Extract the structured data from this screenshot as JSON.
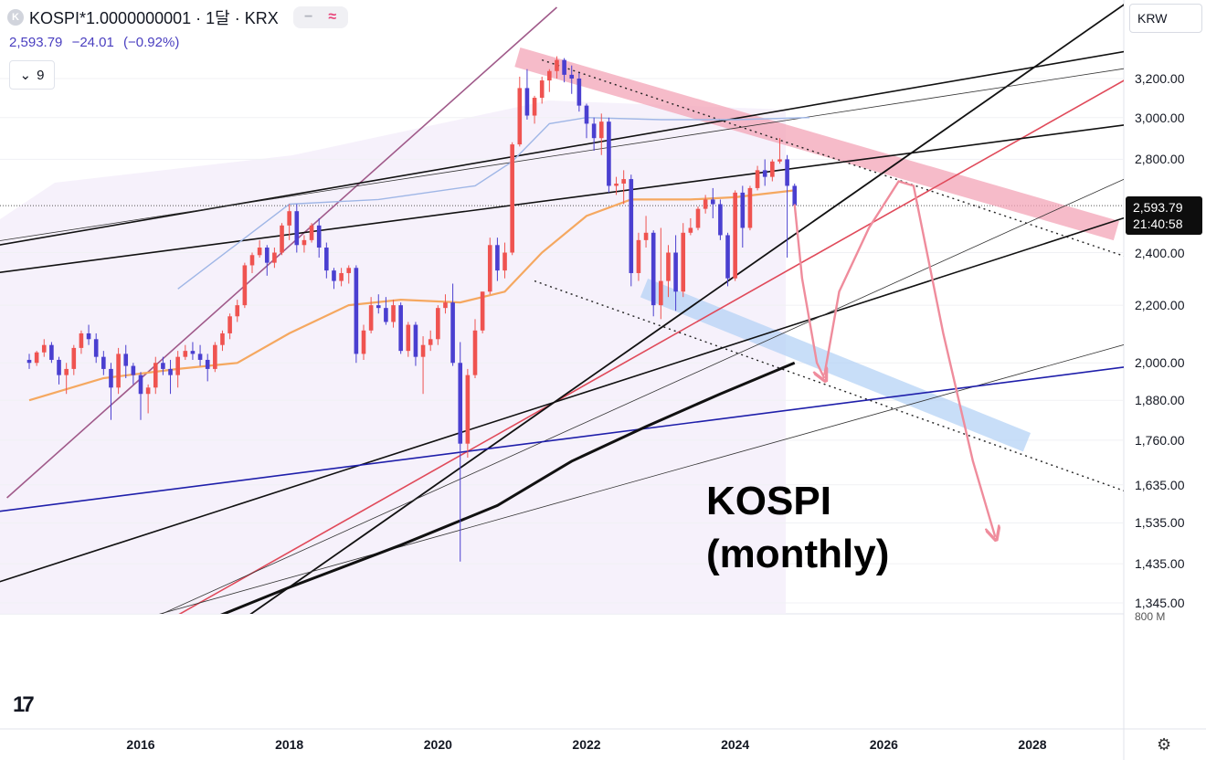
{
  "header": {
    "logo_letter": "K",
    "symbol_title": "KOSPI*1.0000000001 · 1달 · KRX",
    "pill_minus": "−",
    "pill_approx": "≈",
    "last_price": "2,593.79",
    "change": "−24.01",
    "change_pct": "(−0.92%)",
    "indicator_chevron": "⌄",
    "indicator_count": "9"
  },
  "currency": "KRW",
  "price_tag": {
    "price": "2,593.79",
    "countdown": "21:40:58"
  },
  "volume_axis_label": "800 M",
  "annotation": {
    "line1": "KOSPI",
    "line2": "(monthly)"
  },
  "colors": {
    "up": "#ef5350",
    "down": "#4a3fd0",
    "ma_short": "#f5a860",
    "ma_long": "#9fb6e6",
    "red_band": "#f4a5b8",
    "blue_band": "#b6d3f6",
    "arrow": "#ef8c9c",
    "navy_line": "#1e1eaa"
  },
  "icons": {
    "tv_logo": "tradingview-logo-icon",
    "settings": "gear-icon"
  },
  "chart_data": {
    "type": "candlestick",
    "title": "KOSPI (monthly)",
    "interval": "monthly",
    "y_scale": "log",
    "y_ticks": [
      "3,200.00",
      "3,000.00",
      "2,800.00",
      "2,593.79",
      "2,400.00",
      "2,200.00",
      "2,000.00",
      "1,880.00",
      "1,760.00",
      "1,635.00",
      "1,535.00",
      "1,435.00",
      "1,345.00"
    ],
    "y_tick_values": [
      3200,
      3000,
      2800,
      2400,
      2200,
      2000,
      1880,
      1760,
      1635,
      1535,
      1435,
      1345
    ],
    "x_ticks": [
      "2016",
      "2018",
      "2020",
      "2022",
      "2024",
      "2026",
      "2028"
    ],
    "ylim": [
      1300,
      3500
    ],
    "xlim": [
      2014.4,
      2029.2
    ],
    "last": 2593.79,
    "candles": [
      [
        2014.5,
        2010,
        2030,
        1980,
        2000
      ],
      [
        2014.6,
        2000,
        2040,
        1990,
        2035
      ],
      [
        2014.7,
        2035,
        2080,
        2020,
        2060
      ],
      [
        2014.8,
        2060,
        2070,
        2000,
        2010
      ],
      [
        2014.9,
        2010,
        2020,
        1930,
        1960
      ],
      [
        2015.0,
        1960,
        2000,
        1900,
        1980
      ],
      [
        2015.1,
        1980,
        2060,
        1960,
        2050
      ],
      [
        2015.2,
        2050,
        2110,
        2030,
        2100
      ],
      [
        2015.3,
        2100,
        2130,
        2060,
        2080
      ],
      [
        2015.4,
        2080,
        2100,
        2000,
        2020
      ],
      [
        2015.5,
        2020,
        2040,
        1960,
        1980
      ],
      [
        2015.6,
        1980,
        2000,
        1820,
        1920
      ],
      [
        2015.7,
        1920,
        2050,
        1900,
        2030
      ],
      [
        2015.8,
        2030,
        2060,
        1950,
        1990
      ],
      [
        2015.9,
        1990,
        2000,
        1930,
        1960
      ],
      [
        2016.0,
        1960,
        1970,
        1820,
        1900
      ],
      [
        2016.1,
        1900,
        1930,
        1840,
        1920
      ],
      [
        2016.2,
        1920,
        2020,
        1900,
        2000
      ],
      [
        2016.3,
        2000,
        2020,
        1960,
        1980
      ],
      [
        2016.4,
        1980,
        2010,
        1900,
        1960
      ],
      [
        2016.5,
        1960,
        2040,
        1920,
        2020
      ],
      [
        2016.6,
        2020,
        2060,
        2010,
        2040
      ],
      [
        2016.7,
        2040,
        2070,
        2010,
        2030
      ],
      [
        2016.8,
        2030,
        2060,
        1990,
        2010
      ],
      [
        2016.9,
        2010,
        2030,
        1940,
        1980
      ],
      [
        2017.0,
        1980,
        2070,
        1970,
        2060
      ],
      [
        2017.1,
        2060,
        2110,
        2040,
        2100
      ],
      [
        2017.2,
        2100,
        2170,
        2080,
        2160
      ],
      [
        2017.3,
        2160,
        2220,
        2140,
        2200
      ],
      [
        2017.4,
        2200,
        2360,
        2190,
        2350
      ],
      [
        2017.5,
        2350,
        2400,
        2320,
        2390
      ],
      [
        2017.6,
        2390,
        2450,
        2380,
        2420
      ],
      [
        2017.7,
        2420,
        2430,
        2310,
        2360
      ],
      [
        2017.8,
        2360,
        2420,
        2340,
        2400
      ],
      [
        2017.9,
        2400,
        2520,
        2390,
        2510
      ],
      [
        2018.0,
        2510,
        2600,
        2450,
        2570
      ],
      [
        2018.1,
        2570,
        2600,
        2400,
        2430
      ],
      [
        2018.2,
        2430,
        2470,
        2400,
        2450
      ],
      [
        2018.3,
        2450,
        2520,
        2440,
        2510
      ],
      [
        2018.4,
        2510,
        2540,
        2380,
        2420
      ],
      [
        2018.5,
        2420,
        2440,
        2300,
        2330
      ],
      [
        2018.6,
        2330,
        2340,
        2260,
        2290
      ],
      [
        2018.7,
        2290,
        2340,
        2270,
        2320
      ],
      [
        2018.8,
        2320,
        2350,
        2280,
        2340
      ],
      [
        2018.9,
        2340,
        2350,
        2000,
        2030
      ],
      [
        2019.0,
        2030,
        2130,
        2010,
        2110
      ],
      [
        2019.1,
        2110,
        2230,
        2100,
        2200
      ],
      [
        2019.2,
        2200,
        2240,
        2170,
        2190
      ],
      [
        2019.3,
        2190,
        2230,
        2130,
        2140
      ],
      [
        2019.4,
        2140,
        2220,
        2120,
        2200
      ],
      [
        2019.5,
        2200,
        2210,
        2030,
        2040
      ],
      [
        2019.6,
        2040,
        2140,
        2020,
        2130
      ],
      [
        2019.7,
        2130,
        2140,
        1990,
        2020
      ],
      [
        2019.8,
        2020,
        2090,
        1900,
        2060
      ],
      [
        2019.9,
        2060,
        2110,
        2040,
        2080
      ],
      [
        2020.0,
        2080,
        2200,
        2060,
        2190
      ],
      [
        2020.1,
        2190,
        2240,
        2170,
        2210
      ],
      [
        2020.2,
        2210,
        2280,
        1990,
        2000
      ],
      [
        2020.3,
        2000,
        2070,
        1440,
        1750
      ],
      [
        2020.4,
        1750,
        1980,
        1710,
        1960
      ],
      [
        2020.5,
        1960,
        2150,
        1950,
        2110
      ],
      [
        2020.6,
        2110,
        2250,
        2100,
        2250
      ],
      [
        2020.7,
        2250,
        2460,
        2240,
        2430
      ],
      [
        2020.8,
        2430,
        2460,
        2290,
        2330
      ],
      [
        2020.9,
        2330,
        2440,
        2300,
        2400
      ],
      [
        2021.0,
        2400,
        2880,
        2390,
        2870
      ],
      [
        2021.1,
        2870,
        3210,
        2860,
        3150
      ],
      [
        2021.2,
        3150,
        3250,
        2990,
        3010
      ],
      [
        2021.3,
        3010,
        3110,
        2970,
        3100
      ],
      [
        2021.4,
        3100,
        3210,
        3070,
        3190
      ],
      [
        2021.5,
        3190,
        3250,
        3130,
        3240
      ],
      [
        2021.6,
        3240,
        3320,
        3200,
        3300
      ],
      [
        2021.7,
        3300,
        3310,
        3180,
        3220
      ],
      [
        2021.8,
        3220,
        3270,
        3120,
        3200
      ],
      [
        2021.9,
        3200,
        3230,
        3030,
        3060
      ],
      [
        2022.0,
        3060,
        3070,
        2900,
        2970
      ],
      [
        2022.1,
        2970,
        3000,
        2840,
        2900
      ],
      [
        2022.2,
        2900,
        3020,
        2820,
        2980
      ],
      [
        2022.3,
        2980,
        3000,
        2650,
        2680
      ],
      [
        2022.4,
        2680,
        2720,
        2640,
        2690
      ],
      [
        2022.5,
        2690,
        2750,
        2600,
        2710
      ],
      [
        2022.6,
        2710,
        2730,
        2270,
        2320
      ],
      [
        2022.7,
        2320,
        2480,
        2290,
        2450
      ],
      [
        2022.8,
        2450,
        2550,
        2420,
        2480
      ],
      [
        2022.9,
        2480,
        2490,
        2160,
        2200
      ],
      [
        2023.0,
        2200,
        2500,
        2150,
        2290
      ],
      [
        2023.1,
        2290,
        2430,
        2230,
        2400
      ],
      [
        2023.2,
        2400,
        2470,
        2180,
        2250
      ],
      [
        2023.3,
        2250,
        2520,
        2230,
        2480
      ],
      [
        2023.4,
        2480,
        2540,
        2470,
        2500
      ],
      [
        2023.5,
        2500,
        2590,
        2490,
        2580
      ],
      [
        2023.6,
        2580,
        2640,
        2560,
        2620
      ],
      [
        2023.7,
        2620,
        2670,
        2540,
        2600
      ],
      [
        2023.8,
        2600,
        2620,
        2450,
        2470
      ],
      [
        2023.9,
        2470,
        2480,
        2270,
        2300
      ],
      [
        2024.0,
        2300,
        2660,
        2290,
        2650
      ],
      [
        2024.1,
        2650,
        2680,
        2420,
        2500
      ],
      [
        2024.2,
        2500,
        2680,
        2490,
        2670
      ],
      [
        2024.3,
        2670,
        2770,
        2660,
        2750
      ],
      [
        2024.4,
        2750,
        2800,
        2680,
        2720
      ],
      [
        2024.5,
        2720,
        2800,
        2700,
        2790
      ],
      [
        2024.6,
        2790,
        2900,
        2780,
        2800
      ],
      [
        2024.7,
        2800,
        2820,
        2380,
        2680
      ],
      [
        2024.8,
        2680,
        2690,
        2580,
        2593.79
      ]
    ],
    "ma_short": [
      [
        2014.5,
        1880
      ],
      [
        2015.5,
        1950
      ],
      [
        2016.5,
        1980
      ],
      [
        2017.3,
        2000
      ],
      [
        2018.0,
        2100
      ],
      [
        2018.8,
        2200
      ],
      [
        2019.5,
        2220
      ],
      [
        2020.3,
        2210
      ],
      [
        2020.9,
        2250
      ],
      [
        2021.4,
        2400
      ],
      [
        2022.0,
        2550
      ],
      [
        2022.6,
        2620
      ],
      [
        2023.4,
        2620
      ],
      [
        2024.0,
        2630
      ],
      [
        2024.8,
        2660
      ]
    ],
    "ma_long": [
      [
        2016.5,
        2260
      ],
      [
        2018.0,
        2600
      ],
      [
        2019.2,
        2620
      ],
      [
        2020.5,
        2680
      ],
      [
        2021.0,
        2790
      ],
      [
        2021.5,
        2970
      ],
      [
        2022.0,
        3000
      ],
      [
        2023.0,
        2990
      ],
      [
        2024.0,
        2990
      ],
      [
        2025.0,
        3000
      ]
    ],
    "bands": [
      {
        "name": "resistance-band",
        "from": [
          2021.2,
          3300
        ],
        "to": [
          2029.0,
          2500
        ]
      },
      {
        "name": "support-band",
        "from": [
          2022.9,
          2250
        ],
        "to": [
          2027.8,
          1765
        ]
      }
    ]
  }
}
